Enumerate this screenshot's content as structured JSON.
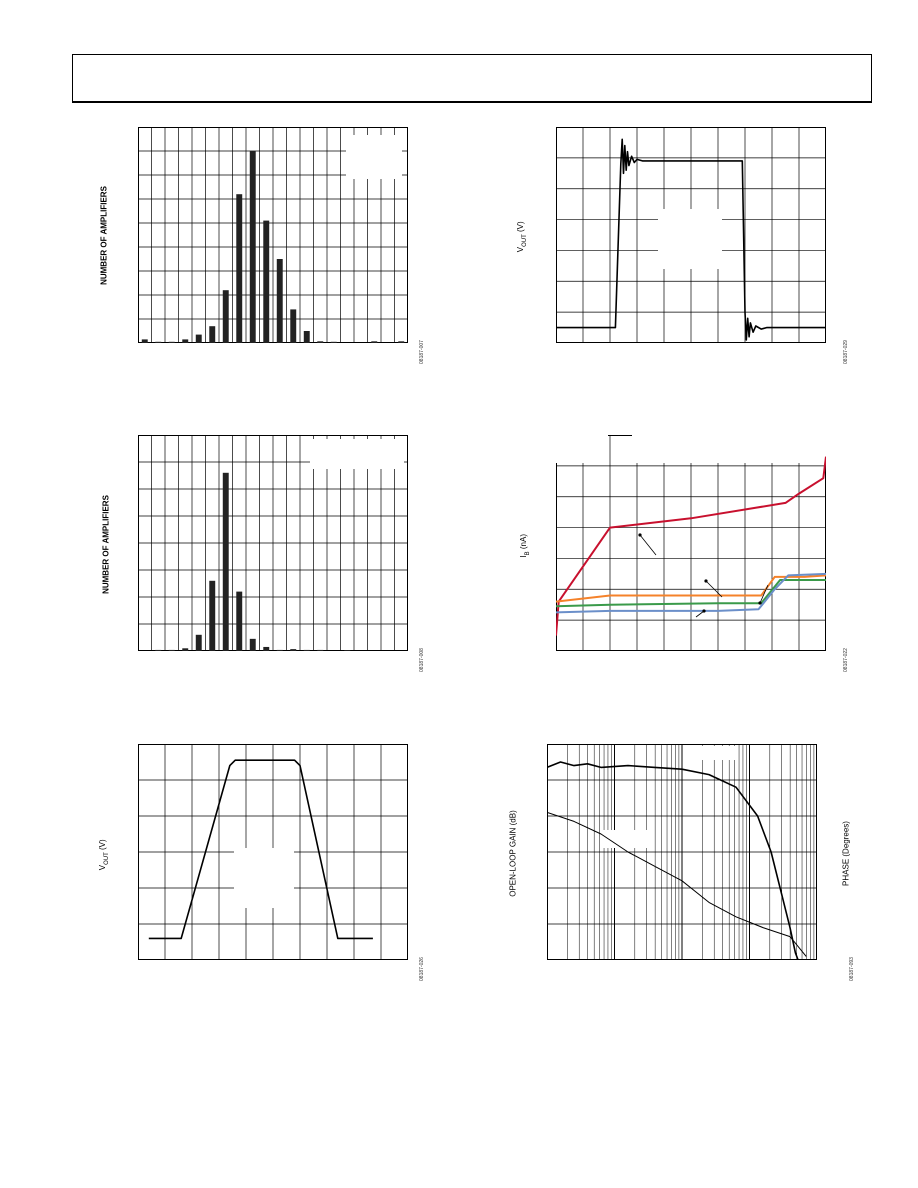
{
  "page": {
    "figure_ids": [
      "08187-007",
      "08187-029",
      "08187-008",
      "08187-022",
      "08187-026",
      "08187-093"
    ]
  },
  "labels": {
    "hist1_ylabel": "NUMBER OF AMPLIFIERS",
    "pulse1_ylabel": "V",
    "pulse1_ylabel_sub": "OUT",
    "pulse1_ylabel_unit": " (V)",
    "hist2_ylabel": "NUMBER OF AMPLIFIERS",
    "ib_ylabel": "I",
    "ib_ylabel_sub": "B",
    "ib_ylabel_unit": " (nA)",
    "pulse2_ylabel": "V",
    "pulse2_ylabel_sub": "OUT",
    "pulse2_ylabel_unit": " (V)",
    "bode_ylabel_left": "OPEN-LOOP GAIN (dB)",
    "bode_ylabel_right": "PHASE (Degrees)"
  },
  "chart_data": [
    {
      "id": "hist1",
      "type": "bar",
      "ylabel": "NUMBER OF AMPLIFIERS",
      "ylim": [
        0,
        9
      ],
      "xlim": [
        0,
        20
      ],
      "grid": true,
      "values": [
        0.15,
        0.05,
        0.05,
        0.15,
        0.35,
        0.7,
        2.2,
        6.2,
        8.0,
        5.1,
        3.5,
        1.4,
        0.5,
        0.07,
        0.05,
        0,
        0,
        0.07,
        0,
        0.07
      ],
      "colors": {
        "bar": "#222222",
        "grid": "#000000"
      }
    },
    {
      "id": "pulse1",
      "type": "line",
      "ylabel": "VOUT (V)",
      "xlim": [
        0,
        10
      ],
      "ylim": [
        0,
        7
      ],
      "grid": true,
      "series": [
        {
          "points": [
            [
              0,
              0.5
            ],
            [
              2.2,
              0.5
            ],
            [
              2.4,
              5.8
            ],
            [
              2.45,
              6.6
            ],
            [
              2.5,
              5.5
            ],
            [
              2.55,
              6.4
            ],
            [
              2.6,
              5.6
            ],
            [
              2.65,
              6.2
            ],
            [
              2.7,
              5.75
            ],
            [
              2.8,
              6.05
            ],
            [
              2.9,
              5.85
            ],
            [
              3.0,
              5.95
            ],
            [
              3.2,
              5.9
            ],
            [
              6.9,
              5.9
            ],
            [
              7.0,
              1.0
            ],
            [
              7.05,
              0.1
            ],
            [
              7.1,
              0.8
            ],
            [
              7.15,
              0.2
            ],
            [
              7.2,
              0.65
            ],
            [
              7.3,
              0.35
            ],
            [
              7.4,
              0.55
            ],
            [
              7.6,
              0.45
            ],
            [
              7.8,
              0.5
            ],
            [
              10,
              0.5
            ]
          ]
        }
      ],
      "colors": {
        "line": "#000000",
        "grid": "#000000"
      }
    },
    {
      "id": "hist2",
      "type": "bar",
      "ylabel": "NUMBER OF AMPLIFIERS",
      "ylim": [
        0,
        8
      ],
      "xlim": [
        0,
        20
      ],
      "grid": true,
      "values": [
        0,
        0.04,
        0.04,
        0.1,
        0.6,
        2.6,
        6.6,
        2.2,
        0.45,
        0.15,
        0.04,
        0.07,
        0.04,
        0.04,
        0,
        0.03,
        0,
        0,
        0,
        0
      ],
      "colors": {
        "bar": "#222222",
        "grid": "#000000"
      }
    },
    {
      "id": "ib",
      "type": "line",
      "ylabel": "IB (nA)",
      "xlim": [
        0,
        10
      ],
      "ylim": [
        0,
        7
      ],
      "grid": true,
      "series": [
        {
          "color": "#c8102e",
          "points": [
            [
              0,
              0.5
            ],
            [
              0.1,
              1.6
            ],
            [
              2.0,
              4.0
            ],
            [
              5.0,
              4.3
            ],
            [
              8.5,
              4.8
            ],
            [
              9.0,
              5.1
            ],
            [
              9.9,
              5.6
            ],
            [
              10,
              6.3
            ]
          ]
        },
        {
          "color": "#f5822a",
          "points": [
            [
              0,
              1.6
            ],
            [
              2,
              1.8
            ],
            [
              6,
              1.8
            ],
            [
              7.6,
              1.8
            ],
            [
              8.1,
              2.4
            ],
            [
              9.2,
              2.4
            ],
            [
              10,
              2.45
            ]
          ]
        },
        {
          "color": "#3a9a4a",
          "points": [
            [
              0,
              1.45
            ],
            [
              2,
              1.5
            ],
            [
              6,
              1.55
            ],
            [
              7.6,
              1.55
            ],
            [
              8.3,
              2.3
            ],
            [
              10,
              2.3
            ]
          ]
        },
        {
          "color": "#6b8fc9",
          "points": [
            [
              0,
              1.25
            ],
            [
              2,
              1.3
            ],
            [
              6,
              1.3
            ],
            [
              7.5,
              1.35
            ],
            [
              8.1,
              2.0
            ],
            [
              8.6,
              2.45
            ],
            [
              10,
              2.5
            ]
          ]
        }
      ],
      "colors": {
        "grid": "#000000"
      }
    },
    {
      "id": "pulse2",
      "type": "line",
      "ylabel": "VOUT (V)",
      "xlim": [
        0,
        10
      ],
      "ylim": [
        0,
        6
      ],
      "grid": true,
      "series": [
        {
          "points": [
            [
              0.4,
              0.6
            ],
            [
              1.6,
              0.6
            ],
            [
              3.4,
              5.4
            ],
            [
              3.6,
              5.55
            ],
            [
              5.8,
              5.55
            ],
            [
              6.0,
              5.4
            ],
            [
              7.4,
              0.6
            ],
            [
              8.7,
              0.6
            ]
          ]
        }
      ],
      "colors": {
        "line": "#000000",
        "grid": "#000000"
      }
    },
    {
      "id": "bode",
      "type": "line",
      "ylabel": "OPEN-LOOP GAIN (dB)",
      "y2label": "PHASE (Degrees)",
      "xlim": [
        0,
        10
      ],
      "ylim": [
        0,
        6
      ],
      "grid": true,
      "series": [
        {
          "name": "phase",
          "width": 1.6,
          "points": [
            [
              0,
              5.35
            ],
            [
              0.5,
              5.5
            ],
            [
              1,
              5.4
            ],
            [
              1.5,
              5.45
            ],
            [
              2,
              5.35
            ],
            [
              3,
              5.4
            ],
            [
              4,
              5.35
            ],
            [
              5,
              5.3
            ],
            [
              6,
              5.15
            ],
            [
              7,
              4.8
            ],
            [
              7.8,
              4.0
            ],
            [
              8.3,
              3.0
            ],
            [
              8.7,
              1.8
            ],
            [
              9.0,
              0.9
            ],
            [
              9.2,
              0.2
            ],
            [
              9.3,
              0
            ]
          ]
        },
        {
          "name": "gain",
          "width": 1.0,
          "points": [
            [
              0,
              4.1
            ],
            [
              1,
              3.85
            ],
            [
              2,
              3.5
            ],
            [
              3,
              3.0
            ],
            [
              4,
              2.6
            ],
            [
              5,
              2.2
            ],
            [
              6,
              1.6
            ],
            [
              7,
              1.2
            ],
            [
              8,
              0.9
            ],
            [
              9,
              0.65
            ],
            [
              9.6,
              0.1
            ]
          ]
        }
      ],
      "colors": {
        "line": "#000000",
        "grid": "#000000"
      }
    }
  ]
}
